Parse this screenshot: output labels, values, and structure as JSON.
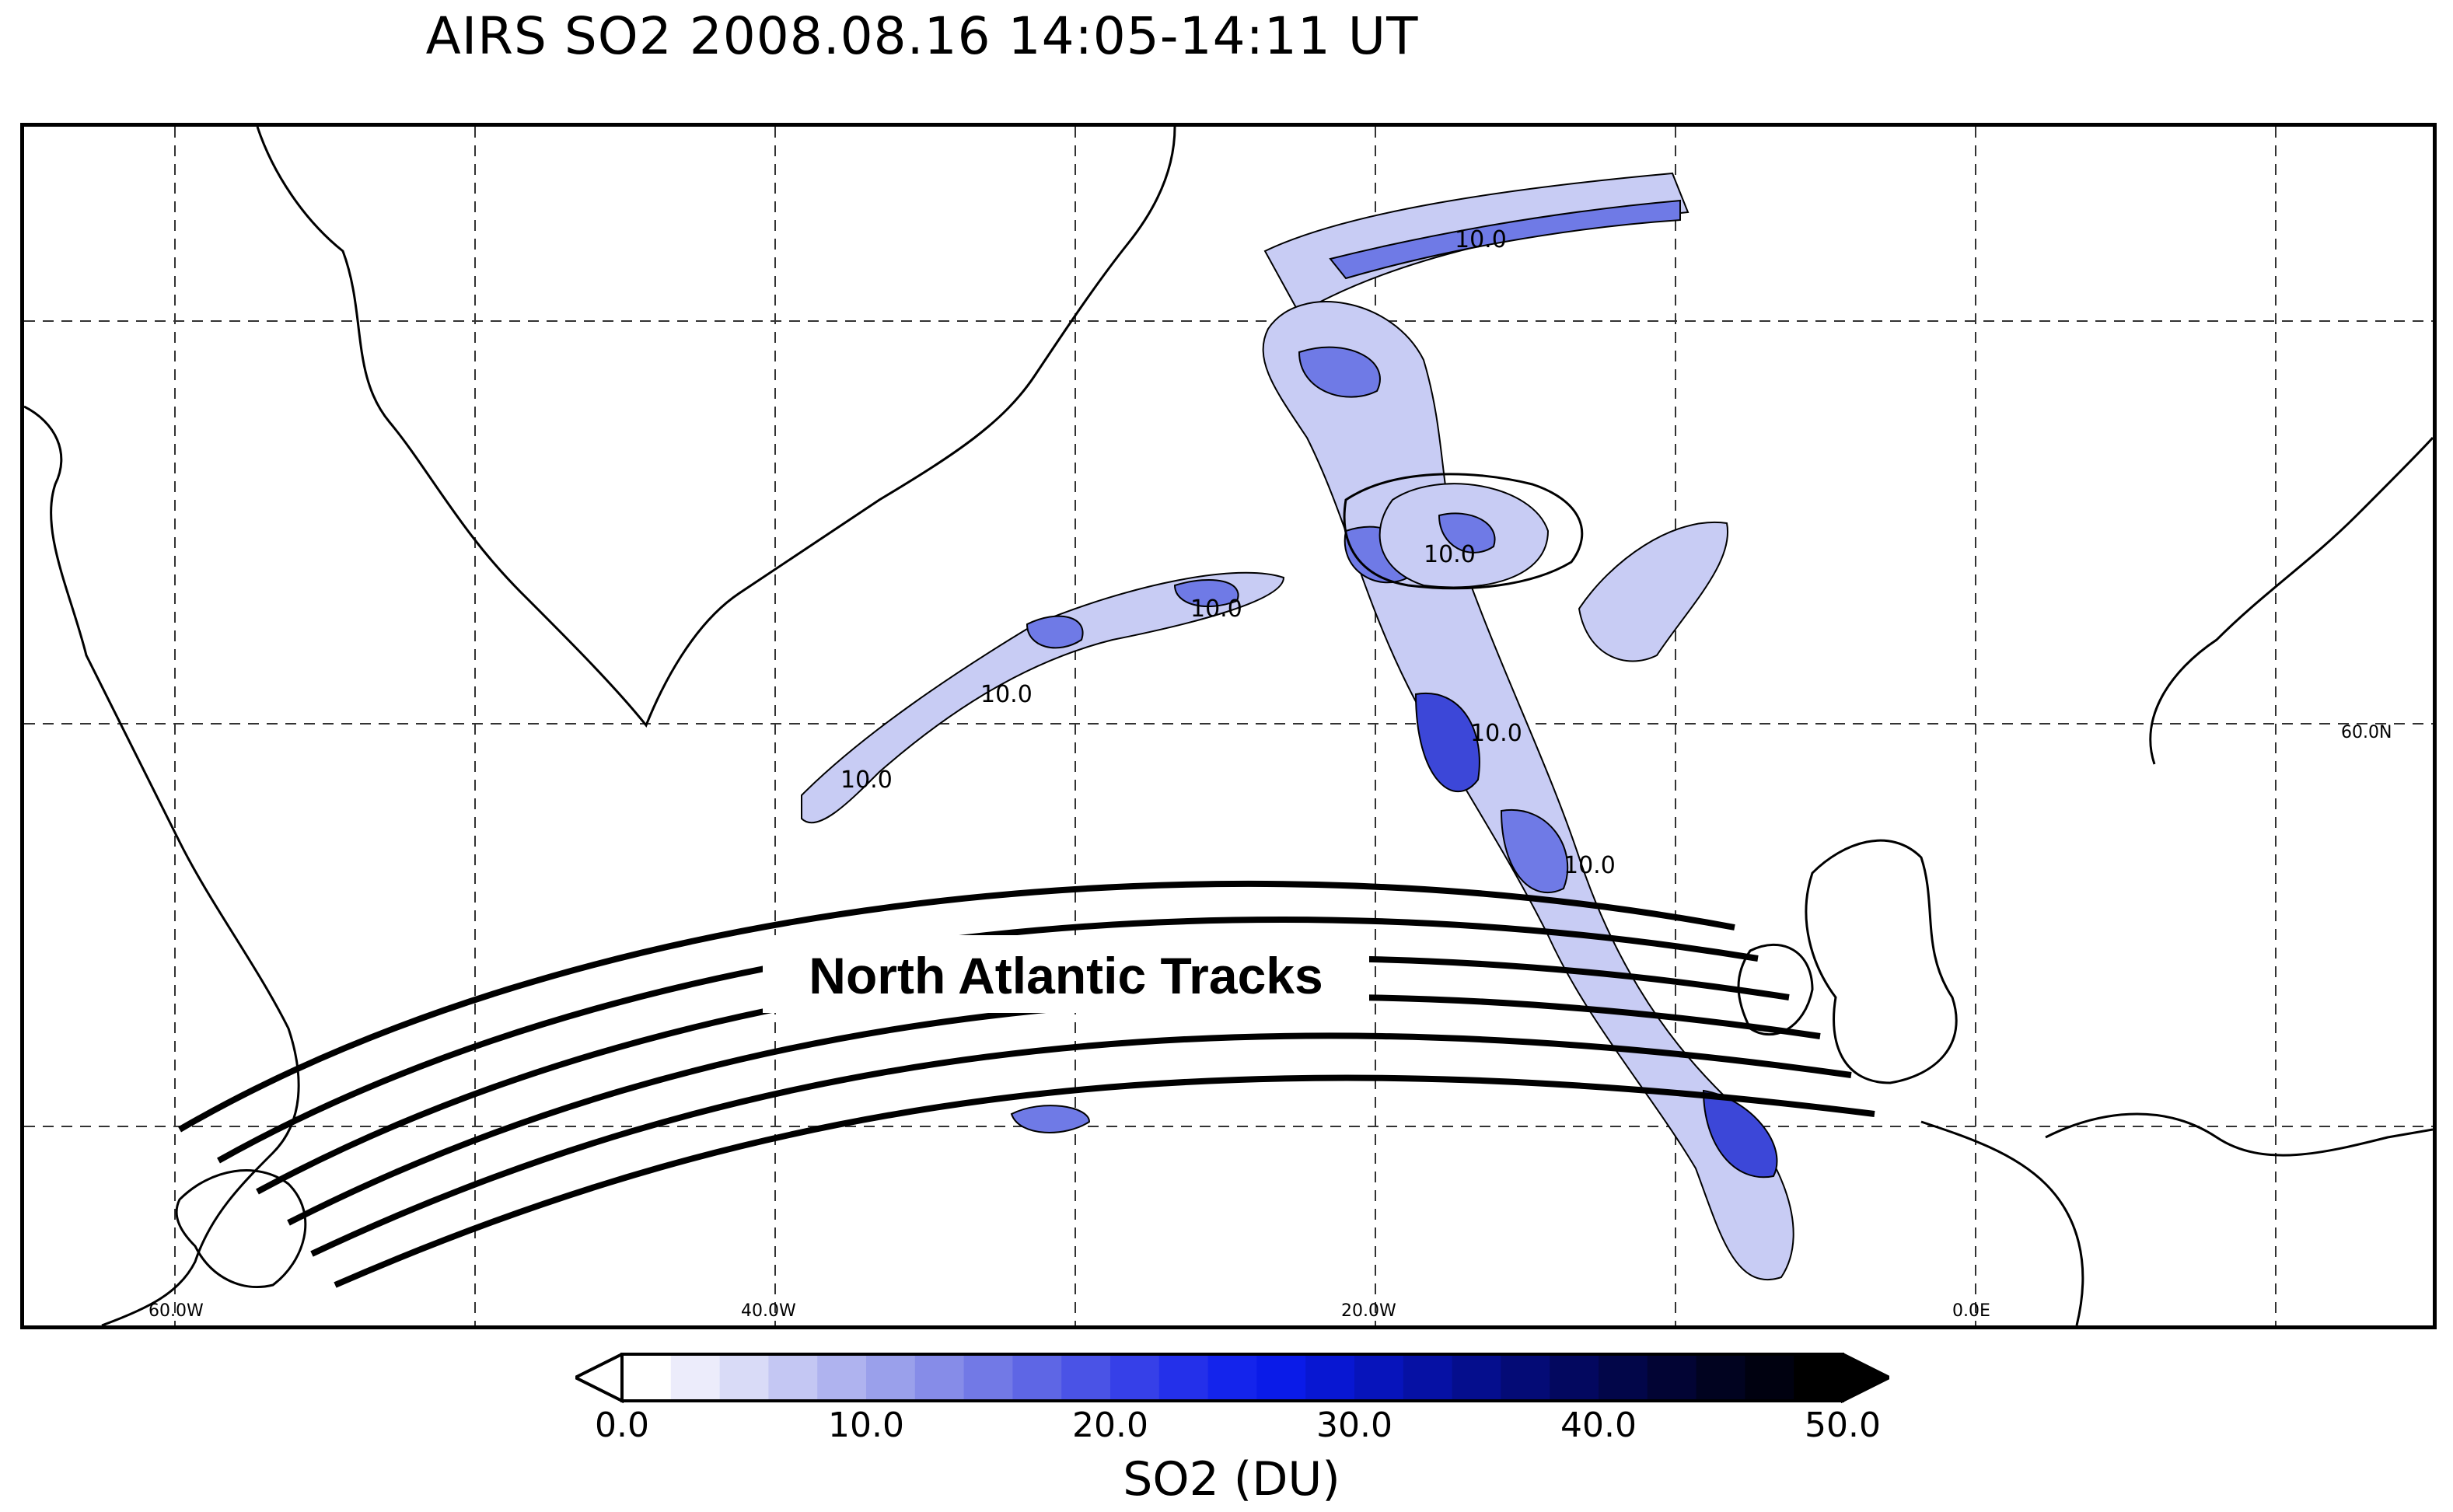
{
  "title": "AIRS SO2 2008.08.16  14:05-14:11 UT",
  "map": {
    "lon_labels": [
      "60.0W",
      "40.0W",
      "20.0W",
      "0.0E"
    ],
    "lat_labels": [
      "60.0N"
    ],
    "contour_labels": [
      "10.0",
      "10.0",
      "10.0",
      "10.0",
      "10.0",
      "10.0",
      "10.0"
    ],
    "annotation": "North Atlantic Tracks",
    "colors": {
      "land_outline": "#000000",
      "plume_low": "#c8ccf4",
      "plume_mid": "#6f7ae6",
      "plume_high": "#1c2aa8",
      "tracks": "#000000"
    }
  },
  "colorbar": {
    "title": "SO2 (DU)",
    "min": 0.0,
    "max": 50.0,
    "tick_labels": [
      "0.0",
      "10.0",
      "20.0",
      "30.0",
      "40.0",
      "50.0"
    ],
    "colors": [
      "#ffffff",
      "#ececfb",
      "#d9dbf7",
      "#c4c7f3",
      "#afb3ef",
      "#9aa0eb",
      "#868ce8",
      "#7279e6",
      "#5e66e5",
      "#4a53e6",
      "#3640e8",
      "#2430ea",
      "#1424ec",
      "#0a1be8",
      "#0817d2",
      "#0714bb",
      "#0611a4",
      "#050e8d",
      "#040b76",
      "#03085f",
      "#020649",
      "#020434",
      "#010320",
      "#000110",
      "#000000"
    ]
  }
}
